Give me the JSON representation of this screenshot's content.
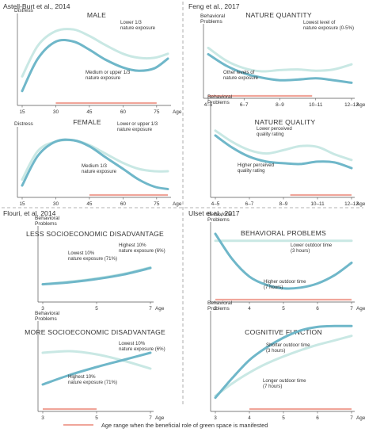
{
  "colors": {
    "dark": "#6fb7c9",
    "light": "#c9e8e4",
    "range": "#f0a59a",
    "axis": "#555555",
    "divider": "#9a9a9a"
  },
  "legend": {
    "label": "Age range when the beneficial role of green space is manifested"
  },
  "chart_data": [
    {
      "type": "line",
      "source": "Astell-Burt et al., 2014",
      "title": "MALE",
      "ylabel": "Distress",
      "xlabel": "Age",
      "xlim": [
        15,
        80
      ],
      "ylim": [
        0,
        1
      ],
      "xticks": [
        15,
        30,
        45,
        60,
        75
      ],
      "xtick_labels": [
        "15",
        "30",
        "45",
        "60",
        "75"
      ],
      "series": [
        {
          "name": "Lower 1/3 nature exposure",
          "tone": "light",
          "x": [
            15,
            22,
            30,
            38,
            45,
            52,
            60,
            67,
            74,
            80
          ],
          "y": [
            0.3,
            0.68,
            0.86,
            0.88,
            0.8,
            0.69,
            0.58,
            0.53,
            0.53,
            0.58
          ]
        },
        {
          "name": "Medium or upper 1/3 nature exposure",
          "tone": "dark",
          "x": [
            15,
            22,
            30,
            38,
            45,
            52,
            60,
            67,
            74,
            80
          ],
          "y": [
            0.12,
            0.52,
            0.73,
            0.73,
            0.63,
            0.51,
            0.41,
            0.37,
            0.4,
            0.52
          ]
        }
      ],
      "range": [
        30,
        75
      ],
      "annotations": [
        {
          "lines": [
            "Lower 1/3",
            "nature exposure"
          ],
          "series": 0
        },
        {
          "lines": [
            "Medium or upper 1/3",
            "nature exposure"
          ],
          "series": 1
        }
      ]
    },
    {
      "type": "line",
      "source": "Feng et al., 2017",
      "title": "NATURE QUANTITY",
      "ylabel": "Behavioral Problems",
      "xlabel": "Age",
      "xlim": [
        0,
        4
      ],
      "ylim": [
        0,
        1
      ],
      "xticks": [
        0,
        1,
        2,
        3,
        4
      ],
      "xtick_labels": [
        "4–5",
        "6–7",
        "8–9",
        "10–11",
        "12–13"
      ],
      "series": [
        {
          "name": "Lowest level of nature exposure (0–5%)",
          "tone": "light",
          "x": [
            0,
            0.5,
            1,
            1.5,
            2,
            2.5,
            3,
            3.5,
            4
          ],
          "y": [
            0.72,
            0.52,
            0.4,
            0.35,
            0.37,
            0.38,
            0.36,
            0.38,
            0.46
          ]
        },
        {
          "name": "Other levels of nature exposure",
          "tone": "dark",
          "x": [
            0,
            0.5,
            1,
            1.5,
            2,
            2.5,
            3,
            3.5,
            4
          ],
          "y": [
            0.62,
            0.44,
            0.32,
            0.25,
            0.21,
            0.22,
            0.24,
            0.21,
            0.17
          ]
        }
      ],
      "range": [
        0,
        2.9
      ],
      "annotations": [
        {
          "lines": [
            "Lowest level of",
            "nature exposure (0-5%)"
          ],
          "series": 0
        },
        {
          "lines": [
            "Other levels of",
            "nature exposure"
          ],
          "series": 1
        }
      ]
    },
    {
      "type": "line",
      "source": "",
      "title": "FEMALE",
      "ylabel": "Distress",
      "xlabel": "Age",
      "xlim": [
        15,
        80
      ],
      "ylim": [
        0,
        1
      ],
      "xticks": [
        15,
        30,
        45,
        60,
        75
      ],
      "xtick_labels": [
        "15",
        "30",
        "45",
        "60",
        "75"
      ],
      "series": [
        {
          "name": "Lower or upper 1/3 nature exposure",
          "tone": "light",
          "x": [
            15,
            22,
            30,
            38,
            45,
            52,
            60,
            67,
            74,
            80
          ],
          "y": [
            0.22,
            0.7,
            0.86,
            0.88,
            0.8,
            0.66,
            0.5,
            0.4,
            0.36,
            0.36
          ]
        },
        {
          "name": "Medium 1/3 nature exposure",
          "tone": "dark",
          "x": [
            15,
            22,
            30,
            38,
            45,
            52,
            60,
            67,
            74,
            80
          ],
          "y": [
            0.12,
            0.62,
            0.86,
            0.88,
            0.78,
            0.6,
            0.4,
            0.22,
            0.1,
            0.06
          ]
        }
      ],
      "range": [
        45,
        80
      ],
      "annotations": [
        {
          "lines": [
            "Lower or upper 1/3",
            "nature exposure"
          ],
          "series": 0
        },
        {
          "lines": [
            "Medium 1/3",
            "nature exposure"
          ],
          "series": 1
        }
      ]
    },
    {
      "type": "line",
      "source": "",
      "title": "NATURE QUALITY",
      "ylabel": "Behavioral Problems",
      "xlabel": "Age",
      "xlim": [
        0,
        4
      ],
      "ylim": [
        0,
        1
      ],
      "xticks": [
        0,
        1,
        2,
        3,
        4
      ],
      "xtick_labels": [
        "4–5",
        "6–7",
        "8–9",
        "10–11",
        "12–13"
      ],
      "series": [
        {
          "name": "Lower perceived quality rating",
          "tone": "light",
          "x": [
            0,
            0.5,
            1,
            1.5,
            2,
            2.5,
            3,
            3.5,
            4
          ],
          "y": [
            0.76,
            0.62,
            0.52,
            0.48,
            0.52,
            0.57,
            0.56,
            0.47,
            0.4
          ]
        },
        {
          "name": "Higher perceived quality rating",
          "tone": "dark",
          "x": [
            0,
            0.5,
            1,
            1.5,
            2,
            2.5,
            3,
            3.5,
            4
          ],
          "y": [
            0.7,
            0.55,
            0.44,
            0.38,
            0.36,
            0.35,
            0.38,
            0.37,
            0.3
          ]
        }
      ],
      "range": [
        2.2,
        4
      ],
      "annotations": [
        {
          "lines": [
            "Lower perceived",
            "quality rating"
          ],
          "series": 0
        },
        {
          "lines": [
            "Higher perceived",
            "quality rating"
          ],
          "series": 1
        }
      ]
    },
    {
      "type": "line",
      "source": "Flouri, et al. 2014",
      "title": "LESS SOCIOECONOMIC DISADVANTAGE",
      "ylabel": "Behavioral Problems",
      "xlabel": "Age",
      "xlim": [
        3,
        7
      ],
      "ylim": [
        0,
        1
      ],
      "xticks": [
        3,
        5,
        7
      ],
      "xtick_labels": [
        "3",
        "5",
        "7"
      ],
      "series": [
        {
          "name": "Highest 10% nature exposure (6%)",
          "tone": "light",
          "x": [
            3,
            4,
            5,
            6,
            7
          ],
          "y": [
            0.2,
            0.24,
            0.29,
            0.36,
            0.46
          ]
        },
        {
          "name": "Lowest 10% nature exposure (71%)",
          "tone": "dark",
          "x": [
            3,
            4,
            5,
            6,
            7
          ],
          "y": [
            0.2,
            0.23,
            0.28,
            0.35,
            0.45
          ]
        }
      ],
      "range": null,
      "annotations": [
        {
          "lines": [
            "Highest 10%",
            "nature exposure (6%)"
          ],
          "series": 0
        },
        {
          "lines": [
            "Lowest 10%",
            "nature exposure (71%)"
          ],
          "series": 1
        }
      ]
    },
    {
      "type": "line",
      "source": "Ulset et al., 2017",
      "title": "BEHAVIORAL PROBLEMS",
      "ylabel": "Behavioral Problems",
      "xlabel": "Age",
      "xlim": [
        3,
        7
      ],
      "ylim": [
        0,
        1
      ],
      "xticks": [
        3,
        4,
        5,
        6,
        7
      ],
      "xtick_labels": [
        "3",
        "4",
        "5",
        "6",
        "7"
      ],
      "series": [
        {
          "name": "Lower outdoor time (3 hours)",
          "tone": "light",
          "x": [
            3,
            7
          ],
          "y": [
            0.82,
            0.82
          ]
        },
        {
          "name": "Higher outdoor time (7 hours)",
          "tone": "dark",
          "x": [
            3,
            3.5,
            4,
            4.5,
            5,
            5.5,
            6,
            6.5,
            7
          ],
          "y": [
            0.92,
            0.55,
            0.3,
            0.18,
            0.13,
            0.14,
            0.2,
            0.32,
            0.5
          ]
        }
      ],
      "range": [
        3,
        7
      ],
      "annotations": [
        {
          "lines": [
            "Lower outdoor time",
            "(3 hours)"
          ],
          "series": 0
        },
        {
          "lines": [
            "Higher outdoor time",
            "(7 hours)"
          ],
          "series": 1
        }
      ]
    },
    {
      "type": "line",
      "source": "",
      "title": "MORE SOCIOECONOMIC DISADVANTAGE",
      "ylabel": "Behavioral Problems",
      "xlabel": "Age",
      "xlim": [
        3,
        7
      ],
      "ylim": [
        0,
        1
      ],
      "xticks": [
        3,
        5,
        7
      ],
      "xtick_labels": [
        "3",
        "5",
        "7"
      ],
      "series": [
        {
          "name": "Lowest 10% nature exposure (6%)",
          "tone": "light",
          "x": [
            3,
            4,
            5,
            6,
            7
          ],
          "y": [
            0.68,
            0.7,
            0.66,
            0.58,
            0.48
          ]
        },
        {
          "name": "Highest 10% nature exposure (71%)",
          "tone": "dark",
          "x": [
            3,
            4,
            5,
            6,
            7
          ],
          "y": [
            0.28,
            0.4,
            0.5,
            0.59,
            0.68
          ]
        }
      ],
      "range": [
        3,
        5
      ],
      "annotations": [
        {
          "lines": [
            "Lowest 10%",
            "nature exposure (6%)"
          ],
          "series": 0
        },
        {
          "lines": [
            "Highest 10%",
            "nature exposure (71%)"
          ],
          "series": 1
        }
      ]
    },
    {
      "type": "line",
      "source": "",
      "title": "COGNITIVE FUNCTION",
      "ylabel": "Behavioral Problems",
      "xlabel": "Age",
      "xlim": [
        3,
        7
      ],
      "ylim": [
        0,
        1
      ],
      "xticks": [
        3,
        4,
        5,
        6,
        7
      ],
      "xtick_labels": [
        "3",
        "4",
        "5",
        "6",
        "7"
      ],
      "series": [
        {
          "name": "Shorter outdoor time (3 hours)",
          "tone": "dark",
          "x": [
            3,
            3.5,
            4,
            4.5,
            5,
            5.5,
            6,
            6.5,
            7
          ],
          "y": [
            0.1,
            0.32,
            0.52,
            0.66,
            0.77,
            0.85,
            0.89,
            0.9,
            0.9
          ]
        },
        {
          "name": "Longer outdoor time (7 hours)",
          "tone": "light",
          "x": [
            3,
            3.5,
            4,
            4.5,
            5,
            5.5,
            6,
            6.5,
            7
          ],
          "y": [
            0.12,
            0.26,
            0.38,
            0.48,
            0.56,
            0.63,
            0.69,
            0.74,
            0.79
          ]
        }
      ],
      "range": [
        4,
        7
      ],
      "annotations": [
        {
          "lines": [
            "Shorter outdoor time",
            "(3 hours)"
          ],
          "series": 0
        },
        {
          "lines": [
            "Longer outdoor time",
            "(7 hours)"
          ],
          "series": 1
        }
      ]
    }
  ]
}
